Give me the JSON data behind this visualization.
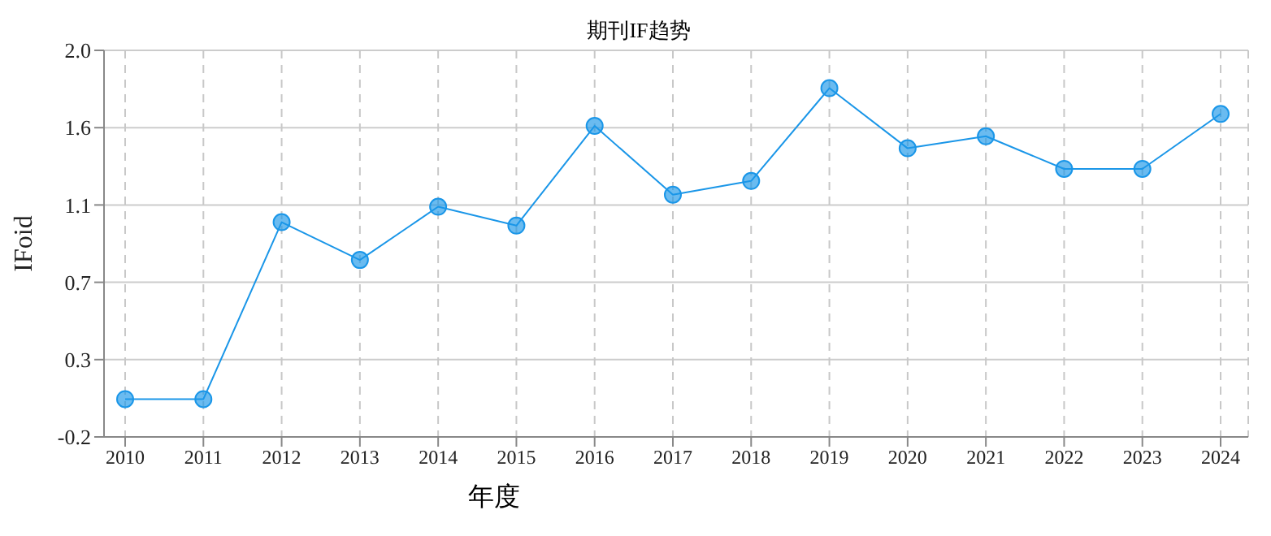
{
  "chart_data": {
    "type": "line",
    "title": "期刊IF趋势",
    "xlabel": "年度",
    "ylabel": "IFoid",
    "categories": [
      "2010",
      "2011",
      "2012",
      "2013",
      "2014",
      "2015",
      "2016",
      "2017",
      "2018",
      "2019",
      "2020",
      "2021",
      "2022",
      "2023",
      "2024"
    ],
    "series": [
      {
        "color": "#1a96e8",
        "values": [
          0.02,
          0.02,
          1.05,
          0.83,
          1.14,
          1.03,
          1.61,
          1.21,
          1.29,
          1.83,
          1.48,
          1.55,
          1.36,
          1.36,
          1.68
        ]
      }
    ],
    "ylim": [
      -0.2,
      2.05
    ],
    "yticks": [
      {
        "value": -0.2,
        "label": "-0.2"
      },
      {
        "value": 0.25,
        "label": "0.3"
      },
      {
        "value": 0.7,
        "label": "0.7"
      },
      {
        "value": 1.15,
        "label": "1.1"
      },
      {
        "value": 1.6,
        "label": "1.6"
      },
      {
        "value": 2.05,
        "label": "2.0"
      }
    ],
    "grid": true,
    "marker": "circle"
  }
}
